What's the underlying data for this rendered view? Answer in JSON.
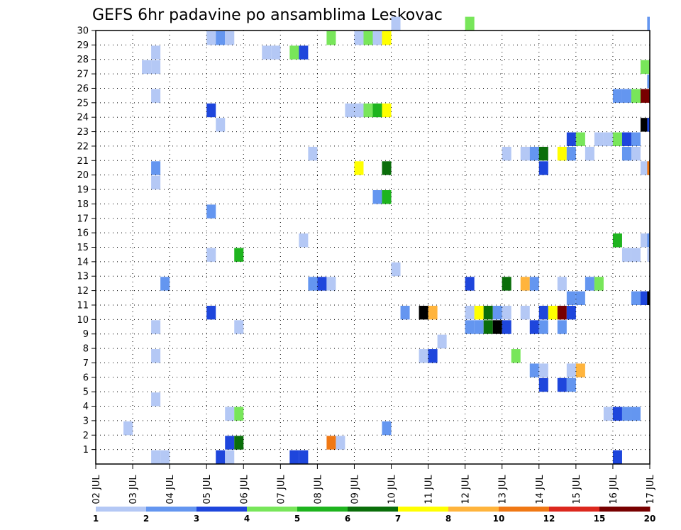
{
  "chart_data": {
    "type": "heatmap",
    "title": "GEFS 6hr padavine po ansamblima Leskovac",
    "x_tick_labels": [
      "02 JUL",
      "03 JUL",
      "04 JUL",
      "05 JUL",
      "06 JUL",
      "07 JUL",
      "08 JUL",
      "09 JUL",
      "10 JUL",
      "11 JUL",
      "12 JUL",
      "13 JUL",
      "14 JUL",
      "15 JUL",
      "16 JUL",
      "17 JUL"
    ],
    "x_unit": "days since 02 JUL",
    "xlim": [
      0,
      15
    ],
    "y_tick_labels": [
      "1",
      "2",
      "3",
      "4",
      "5",
      "6",
      "7",
      "8",
      "9",
      "10",
      "11",
      "12",
      "13",
      "14",
      "15",
      "16",
      "17",
      "18",
      "19",
      "20",
      "21",
      "22",
      "23",
      "24",
      "25",
      "26",
      "27",
      "28",
      "29",
      "30"
    ],
    "ylim": [
      0,
      30
    ],
    "grid": "dotted",
    "legend": {
      "placement": "bottom",
      "colors": [
        "#b4c8f5",
        "#6496f0",
        "#1e46dc",
        "#78e65a",
        "#1eb41e",
        "#0a6e0a",
        "#ffff00",
        "#ffb43c",
        "#f07814",
        "#dc281e",
        "#780000"
      ],
      "labels": [
        "1",
        "2",
        "3",
        "4",
        "5",
        "6",
        "7",
        "8",
        "10",
        "12",
        "15",
        "20"
      ]
    },
    "cells": [
      [
        8.0,
        30,
        1
      ],
      [
        10.0,
        30,
        4
      ],
      [
        14.93,
        30,
        2
      ],
      [
        3.0,
        29,
        1
      ],
      [
        3.25,
        29,
        2
      ],
      [
        3.5,
        29,
        1
      ],
      [
        6.25,
        29,
        4
      ],
      [
        7.0,
        29,
        1
      ],
      [
        7.25,
        29,
        4
      ],
      [
        7.5,
        29,
        1
      ],
      [
        7.75,
        29,
        7
      ],
      [
        4.5,
        28,
        1
      ],
      [
        4.75,
        28,
        1
      ],
      [
        5.25,
        28,
        4
      ],
      [
        5.5,
        28,
        3
      ],
      [
        1.5,
        28,
        1
      ],
      [
        1.25,
        27,
        1
      ],
      [
        1.5,
        27,
        1
      ],
      [
        14.75,
        27,
        4
      ],
      [
        14.93,
        26,
        2
      ],
      [
        1.5,
        25,
        1
      ],
      [
        14.0,
        25,
        2
      ],
      [
        14.25,
        25,
        2
      ],
      [
        14.5,
        25,
        4
      ],
      [
        14.75,
        25,
        11
      ],
      [
        3.0,
        24,
        3
      ],
      [
        6.75,
        24,
        1
      ],
      [
        7.0,
        24,
        1
      ],
      [
        7.25,
        24,
        4
      ],
      [
        7.5,
        24,
        5
      ],
      [
        7.75,
        24,
        7
      ],
      [
        3.25,
        23,
        1
      ],
      [
        14.75,
        23,
        12
      ],
      [
        14.93,
        23,
        3
      ],
      [
        12.75,
        22,
        3
      ],
      [
        13.0,
        22,
        4
      ],
      [
        13.5,
        22,
        1
      ],
      [
        13.75,
        22,
        1
      ],
      [
        14.0,
        22,
        4
      ],
      [
        14.25,
        22,
        3
      ],
      [
        14.5,
        22,
        2
      ],
      [
        5.75,
        21,
        1
      ],
      [
        11.0,
        21,
        1
      ],
      [
        11.5,
        21,
        1
      ],
      [
        11.75,
        21,
        2
      ],
      [
        12.0,
        21,
        6
      ],
      [
        12.5,
        21,
        7
      ],
      [
        12.75,
        21,
        2
      ],
      [
        13.25,
        21,
        1
      ],
      [
        14.25,
        21,
        2
      ],
      [
        14.5,
        21,
        1
      ],
      [
        1.5,
        20,
        2
      ],
      [
        7.0,
        20,
        7
      ],
      [
        7.75,
        20,
        6
      ],
      [
        12.0,
        20,
        3
      ],
      [
        14.75,
        20,
        1
      ],
      [
        14.93,
        20,
        9
      ],
      [
        1.5,
        19,
        1
      ],
      [
        7.5,
        18,
        2
      ],
      [
        7.75,
        18,
        5
      ],
      [
        3.0,
        17,
        2
      ],
      [
        5.5,
        15,
        1
      ],
      [
        14.0,
        15,
        5
      ],
      [
        14.75,
        15,
        1
      ],
      [
        14.93,
        15,
        2
      ],
      [
        3.0,
        14,
        1
      ],
      [
        3.75,
        14,
        5
      ],
      [
        14.25,
        14,
        1
      ],
      [
        14.5,
        14,
        1
      ],
      [
        14.93,
        14,
        1
      ],
      [
        8.0,
        13,
        1
      ],
      [
        1.75,
        12,
        2
      ],
      [
        5.75,
        12,
        2
      ],
      [
        6.0,
        12,
        3
      ],
      [
        6.25,
        12,
        1
      ],
      [
        10.0,
        12,
        3
      ],
      [
        11.0,
        12,
        6
      ],
      [
        11.5,
        12,
        8
      ],
      [
        11.75,
        12,
        2
      ],
      [
        12.5,
        12,
        1
      ],
      [
        13.25,
        12,
        2
      ],
      [
        13.5,
        12,
        4
      ],
      [
        12.75,
        11,
        2
      ],
      [
        13.0,
        11,
        2
      ],
      [
        14.5,
        11,
        2
      ],
      [
        14.75,
        11,
        3
      ],
      [
        14.93,
        11,
        12
      ],
      [
        3.0,
        10,
        3
      ],
      [
        8.25,
        10,
        2
      ],
      [
        8.75,
        10,
        12
      ],
      [
        9.0,
        10,
        8
      ],
      [
        10.0,
        10,
        1
      ],
      [
        10.25,
        10,
        7
      ],
      [
        10.5,
        10,
        6
      ],
      [
        10.75,
        10,
        2
      ],
      [
        11.0,
        10,
        1
      ],
      [
        11.5,
        10,
        1
      ],
      [
        12.0,
        10,
        3
      ],
      [
        12.25,
        10,
        7
      ],
      [
        12.5,
        10,
        11
      ],
      [
        12.75,
        10,
        3
      ],
      [
        1.5,
        9,
        1
      ],
      [
        3.75,
        9,
        1
      ],
      [
        10.0,
        9,
        2
      ],
      [
        10.25,
        9,
        2
      ],
      [
        10.5,
        9,
        6
      ],
      [
        10.75,
        9,
        12
      ],
      [
        11.0,
        9,
        3
      ],
      [
        11.75,
        9,
        3
      ],
      [
        12.0,
        9,
        2
      ],
      [
        12.5,
        9,
        2
      ],
      [
        9.25,
        8,
        1
      ],
      [
        1.5,
        7,
        1
      ],
      [
        8.75,
        7,
        1
      ],
      [
        9.0,
        7,
        3
      ],
      [
        11.25,
        7,
        4
      ],
      [
        11.75,
        6,
        2
      ],
      [
        12.0,
        6,
        1
      ],
      [
        12.75,
        6,
        1
      ],
      [
        13.0,
        6,
        8
      ],
      [
        12.0,
        5,
        3
      ],
      [
        12.5,
        5,
        3
      ],
      [
        12.75,
        5,
        2
      ],
      [
        1.5,
        4,
        1
      ],
      [
        3.5,
        3,
        1
      ],
      [
        3.75,
        3,
        4
      ],
      [
        13.75,
        3,
        1
      ],
      [
        14.0,
        3,
        3
      ],
      [
        14.25,
        3,
        2
      ],
      [
        14.5,
        3,
        2
      ],
      [
        0.75,
        2,
        1
      ],
      [
        7.75,
        2,
        2
      ],
      [
        3.5,
        1,
        3
      ],
      [
        3.75,
        1,
        6
      ],
      [
        6.25,
        1,
        9
      ],
      [
        6.5,
        1,
        1
      ],
      [
        1.5,
        0,
        1
      ],
      [
        1.75,
        0,
        1
      ],
      [
        3.25,
        0,
        3
      ],
      [
        3.5,
        0,
        1
      ],
      [
        5.25,
        0,
        3
      ],
      [
        5.5,
        0,
        3
      ],
      [
        14.0,
        0,
        3
      ]
    ]
  }
}
